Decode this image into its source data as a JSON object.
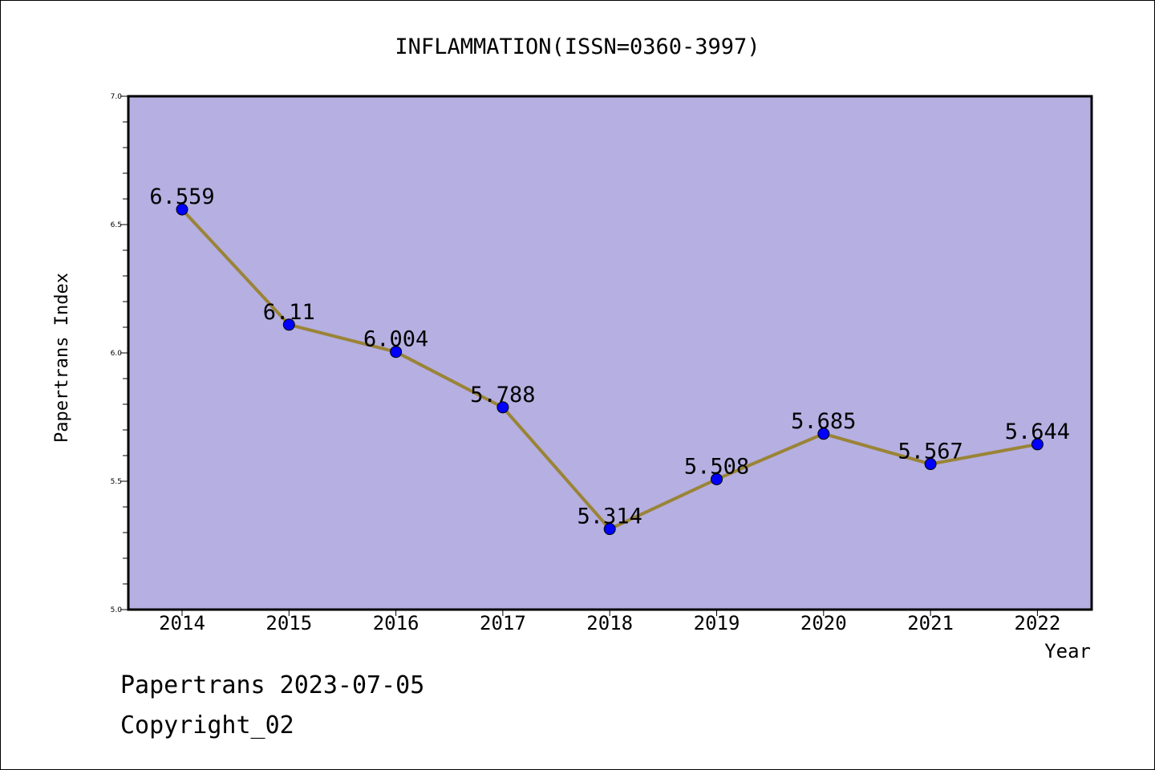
{
  "chart_data": {
    "type": "line",
    "title": "INFLAMMATION(ISSN=0360-3997)",
    "xlabel": "Year",
    "ylabel": "Papertrans Index",
    "x": [
      "2014",
      "2015",
      "2016",
      "2017",
      "2018",
      "2019",
      "2020",
      "2021",
      "2022"
    ],
    "series": [
      {
        "values": [
          6.559,
          6.11,
          6.004,
          5.788,
          5.314,
          5.508,
          5.685,
          5.567,
          5.644
        ],
        "labels": [
          "6.559",
          "6.11",
          "6.004",
          "5.788",
          "5.314",
          "5.508",
          "5.685",
          "5.567",
          "5.644"
        ]
      }
    ],
    "ylim": [
      5.0,
      7.0
    ],
    "yticks": [
      "5.0",
      "5.5",
      "6.0",
      "6.5",
      "7.0"
    ],
    "colors": {
      "plot_bg": "#b5afe2",
      "line": "#9a8436",
      "marker": "#0000ff"
    },
    "grid": false,
    "legend": "none"
  },
  "footer": {
    "line1": "Papertrans 2023-07-05",
    "line2": "Copyright_02"
  }
}
